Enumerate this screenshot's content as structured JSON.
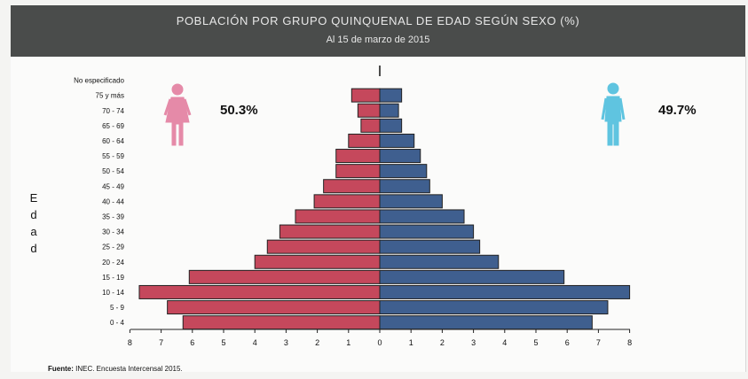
{
  "header": {
    "title": "POBLACIÓN POR GRUPO QUINQUENAL DE EDAD SEGÚN SEXO (%)",
    "subtitle": "Al 15 de marzo de 2015"
  },
  "female_pct": "50.3%",
  "male_pct": "49.7%",
  "ylabel_letters": [
    "E",
    "d",
    "a",
    "d"
  ],
  "source": {
    "label": "Fuente:",
    "text": "INEC. Encuesta Intercensal 2015."
  },
  "colors": {
    "female": "#c5485c",
    "male": "#3f5f8f",
    "female_icon": "#e58aa8",
    "male_icon": "#5fc4e0"
  },
  "icons": {
    "female": "female-person-icon",
    "male": "male-person-icon"
  },
  "chart_data": {
    "type": "bar",
    "orientation": "horizontal-population-pyramid",
    "categories": [
      "No especificado",
      "75 y más",
      "70 - 74",
      "65 - 69",
      "60 - 64",
      "55 - 59",
      "50 - 54",
      "45 - 49",
      "40 - 44",
      "35 - 39",
      "30 - 34",
      "25 - 29",
      "20 - 24",
      "15 - 19",
      "10 - 14",
      "5 - 9",
      "0 - 4"
    ],
    "series": [
      {
        "values": [
          0.0,
          0.9,
          0.7,
          0.6,
          1.0,
          1.4,
          1.4,
          1.8,
          2.1,
          2.7,
          3.2,
          3.6,
          4.0,
          6.1,
          7.7,
          6.8,
          6.3
        ]
      },
      {
        "values": [
          0.0,
          0.7,
          0.6,
          0.7,
          1.1,
          1.3,
          1.5,
          1.6,
          2.0,
          2.7,
          3.0,
          3.2,
          3.8,
          5.9,
          8.0,
          7.3,
          6.8
        ]
      }
    ],
    "xticks": [
      8,
      7,
      6,
      5,
      4,
      3,
      2,
      1,
      0,
      1,
      2,
      3,
      4,
      5,
      6,
      7,
      8
    ],
    "xlim": [
      -8,
      8
    ]
  }
}
